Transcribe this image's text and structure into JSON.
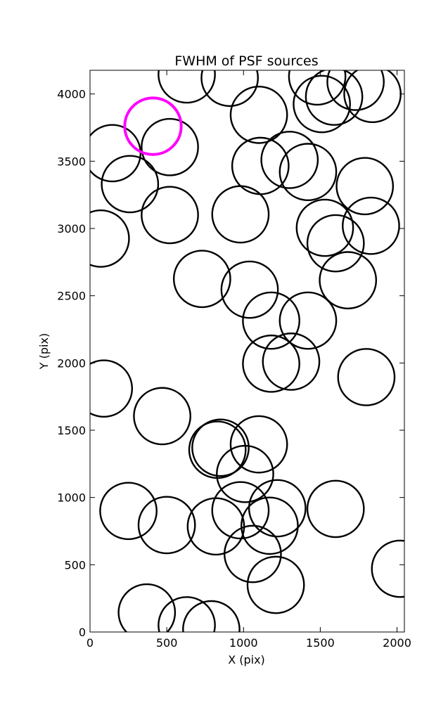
{
  "chart_data": {
    "type": "scatter",
    "title": "FWHM of PSF sources",
    "xlabel": "X (pix)",
    "ylabel": "Y (pix)",
    "xlim": [
      0,
      2048
    ],
    "ylim": [
      0,
      4176
    ],
    "x_ticks": [
      0,
      500,
      1000,
      1500,
      2000
    ],
    "y_ticks": [
      0,
      500,
      1000,
      1500,
      2000,
      2500,
      3000,
      3500,
      4000
    ],
    "grid": false,
    "legend": "none",
    "marker": "circle",
    "marker_radius_data_units": 184,
    "colors": {
      "normal": "#000000",
      "highlight": "#ff00ff"
    },
    "series": [
      {
        "color": "#000000",
        "points": [
          [
            630,
            4145
          ],
          [
            910,
            4120
          ],
          [
            1480,
            4130
          ],
          [
            1730,
            4090
          ],
          [
            1840,
            4000
          ],
          [
            1590,
            3980
          ],
          [
            1510,
            3925
          ],
          [
            1100,
            3845
          ],
          [
            520,
            3605
          ],
          [
            145,
            3560
          ],
          [
            1300,
            3510
          ],
          [
            1110,
            3465
          ],
          [
            1420,
            3420
          ],
          [
            260,
            3330
          ],
          [
            1790,
            3315
          ],
          [
            520,
            3100
          ],
          [
            980,
            3105
          ],
          [
            1530,
            3005
          ],
          [
            1830,
            3020
          ],
          [
            70,
            2925
          ],
          [
            1600,
            2890
          ],
          [
            730,
            2625
          ],
          [
            1040,
            2545
          ],
          [
            1680,
            2615
          ],
          [
            1180,
            2315
          ],
          [
            1420,
            2315
          ],
          [
            1180,
            1995
          ],
          [
            1310,
            2010
          ],
          [
            1800,
            1895
          ],
          [
            90,
            1810
          ],
          [
            470,
            1605
          ],
          [
            830,
            1355
          ],
          [
            850,
            1370
          ],
          [
            1100,
            1395
          ],
          [
            1010,
            1175
          ],
          [
            250,
            900
          ],
          [
            500,
            795
          ],
          [
            820,
            785
          ],
          [
            980,
            905
          ],
          [
            1220,
            920
          ],
          [
            1170,
            790
          ],
          [
            1600,
            915
          ],
          [
            1060,
            580
          ],
          [
            2020,
            470
          ],
          [
            1210,
            350
          ],
          [
            370,
            145
          ],
          [
            630,
            50
          ],
          [
            790,
            20
          ]
        ]
      },
      {
        "color": "#ff00ff",
        "points": [
          [
            410,
            3760
          ]
        ]
      }
    ]
  }
}
